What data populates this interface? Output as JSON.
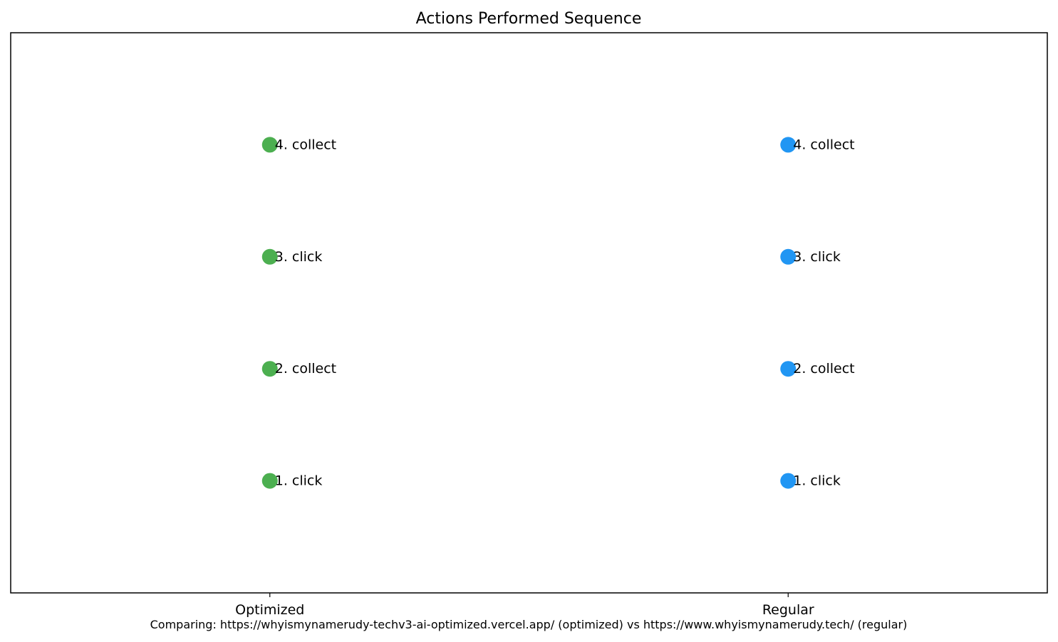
{
  "chart_data": {
    "type": "scatter",
    "title": "Actions Performed Sequence",
    "xlabel": "",
    "ylabel": "",
    "categories": [
      "Optimized",
      "Regular"
    ],
    "ylim": [
      0,
      5
    ],
    "grid": false,
    "series": [
      {
        "color": "#4caf50",
        "x": [
          "Optimized",
          "Optimized",
          "Optimized",
          "Optimized"
        ],
        "y": [
          1,
          2,
          3,
          4
        ],
        "labels": [
          "1. click",
          "2. collect",
          "3. click",
          "4. collect"
        ]
      },
      {
        "color": "#2196f3",
        "x": [
          "Regular",
          "Regular",
          "Regular",
          "Regular"
        ],
        "y": [
          1,
          2,
          3,
          4
        ],
        "labels": [
          "1. click",
          "2. collect",
          "3. click",
          "4. collect"
        ]
      }
    ],
    "caption": "Comparing: https://whyismynamerudy-techv3-ai-optimized.vercel.app/ (optimized) vs https://www.whyismynamerudy.tech/ (regular)"
  }
}
